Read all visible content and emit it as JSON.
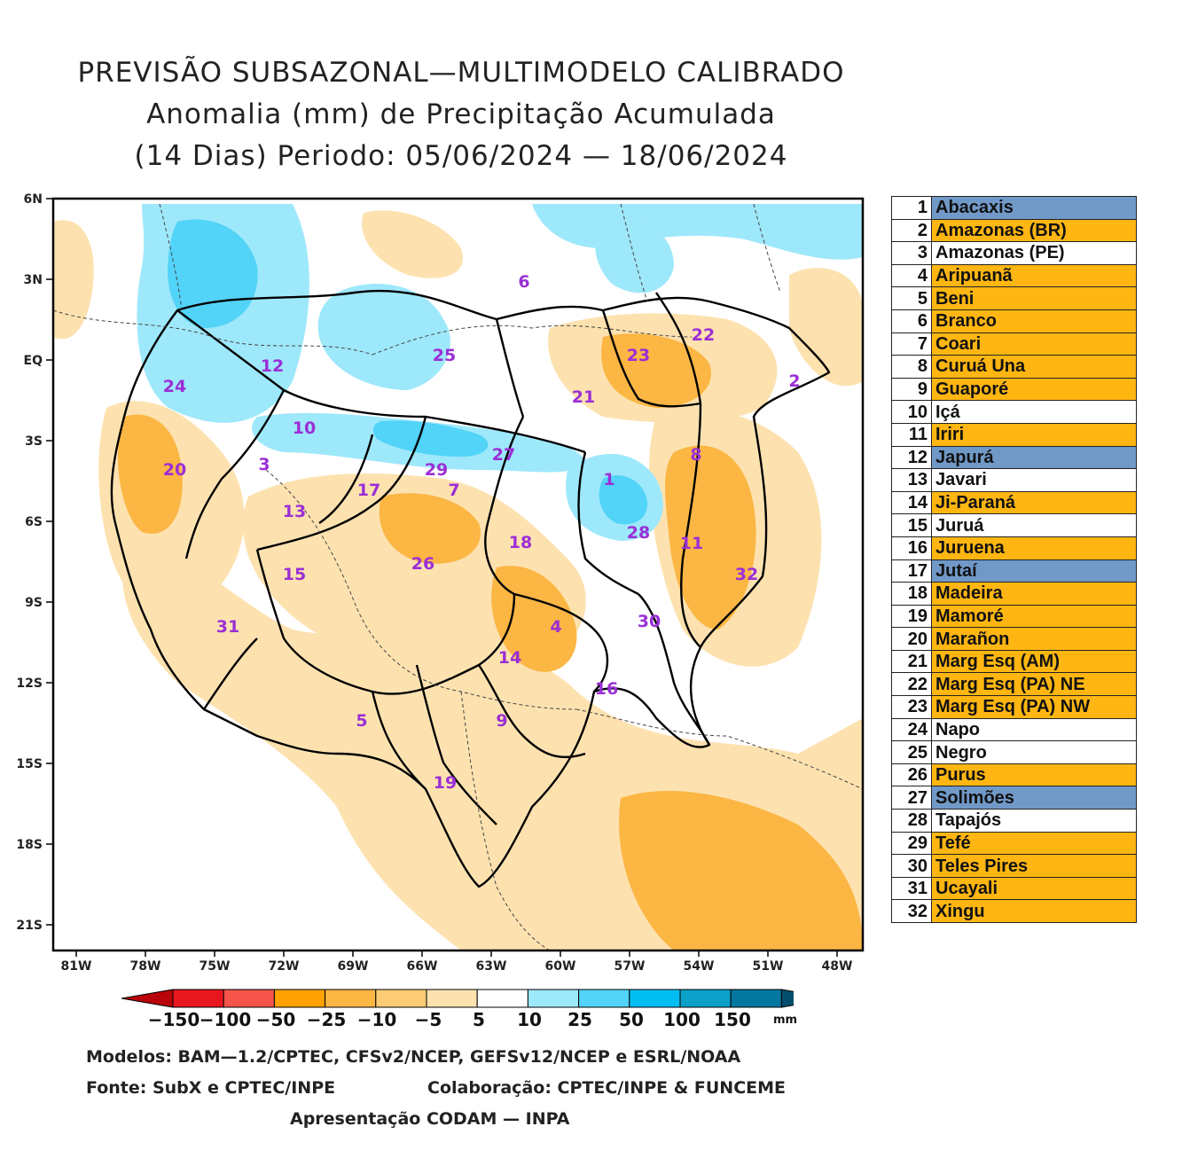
{
  "title": {
    "line1": "PREVISÃO SUBSAZONAL—MULTIMODELO CALIBRADO",
    "line2": "Anomalia (mm) de Precipitação Acumulada",
    "line3": "(14 Dias) Periodo: 05/06/2024 — 18/06/2024"
  },
  "map": {
    "lat_labels": [
      "6N",
      "3N",
      "EQ",
      "3S",
      "6S",
      "9S",
      "12S",
      "15S",
      "18S",
      "21S"
    ],
    "lon_labels": [
      "81W",
      "78W",
      "75W",
      "72W",
      "69W",
      "66W",
      "63W",
      "60W",
      "57W",
      "54W",
      "51W",
      "48W"
    ],
    "basin_numbers": [
      "1",
      "2",
      "3",
      "4",
      "5",
      "6",
      "7",
      "8",
      "9",
      "10",
      "11",
      "12",
      "13",
      "14",
      "15",
      "16",
      "17",
      "18",
      "19",
      "20",
      "21",
      "22",
      "23",
      "24",
      "25",
      "26",
      "27",
      "28",
      "29",
      "30",
      "31",
      "32"
    ]
  },
  "legend": {
    "colors": {
      "blue": "#7199c8",
      "orange": "#ffb612",
      "white": "#ffffff"
    },
    "items": [
      {
        "num": "1",
        "name": "Abacaxis",
        "status": "blue"
      },
      {
        "num": "2",
        "name": "Amazonas (BR)",
        "status": "orange"
      },
      {
        "num": "3",
        "name": "Amazonas (PE)",
        "status": "white"
      },
      {
        "num": "4",
        "name": "Aripuanã",
        "status": "orange"
      },
      {
        "num": "5",
        "name": "Beni",
        "status": "orange"
      },
      {
        "num": "6",
        "name": "Branco",
        "status": "orange"
      },
      {
        "num": "7",
        "name": "Coari",
        "status": "orange"
      },
      {
        "num": "8",
        "name": "Curuá Una",
        "status": "orange"
      },
      {
        "num": "9",
        "name": "Guaporé",
        "status": "orange"
      },
      {
        "num": "10",
        "name": "Içá",
        "status": "white"
      },
      {
        "num": "11",
        "name": "Iriri",
        "status": "orange"
      },
      {
        "num": "12",
        "name": "Japurá",
        "status": "blue"
      },
      {
        "num": "13",
        "name": "Javari",
        "status": "white"
      },
      {
        "num": "14",
        "name": "Ji-Paraná",
        "status": "orange"
      },
      {
        "num": "15",
        "name": "Juruá",
        "status": "white"
      },
      {
        "num": "16",
        "name": "Juruena",
        "status": "orange"
      },
      {
        "num": "17",
        "name": "Jutaí",
        "status": "blue"
      },
      {
        "num": "18",
        "name": "Madeira",
        "status": "orange"
      },
      {
        "num": "19",
        "name": "Mamoré",
        "status": "orange"
      },
      {
        "num": "20",
        "name": "Marañon",
        "status": "orange"
      },
      {
        "num": "21",
        "name": "Marg Esq (AM)",
        "status": "orange"
      },
      {
        "num": "22",
        "name": "Marg Esq (PA) NE",
        "status": "orange"
      },
      {
        "num": "23",
        "name": "Marg Esq (PA) NW",
        "status": "orange"
      },
      {
        "num": "24",
        "name": "Napo",
        "status": "white"
      },
      {
        "num": "25",
        "name": "Negro",
        "status": "white"
      },
      {
        "num": "26",
        "name": "Purus",
        "status": "orange"
      },
      {
        "num": "27",
        "name": "Solimões",
        "status": "blue"
      },
      {
        "num": "28",
        "name": "Tapajós",
        "status": "white"
      },
      {
        "num": "29",
        "name": "Tefé",
        "status": "orange"
      },
      {
        "num": "30",
        "name": "Teles Pires",
        "status": "orange"
      },
      {
        "num": "31",
        "name": "Ucayali",
        "status": "orange"
      },
      {
        "num": "32",
        "name": "Xingu",
        "status": "orange"
      }
    ]
  },
  "colorbar": {
    "labels": [
      "−150",
      "−100",
      "−50",
      "−25",
      "−10",
      "−5",
      "5",
      "10",
      "25",
      "50",
      "100",
      "150"
    ],
    "colors": [
      "#b8040a",
      "#e8171f",
      "#f5544a",
      "#ffa100",
      "#fbb644",
      "#fccb74",
      "#fde2b0",
      "#ffffff",
      "#9ee8fb",
      "#52d3f8",
      "#00bef2",
      "#0aa0c8",
      "#0477a0",
      "#044e6c"
    ],
    "unit": "mm"
  },
  "credits": {
    "models": "Modelos: BAM—1.2/CPTEC, CFSv2/NCEP, GEFSv12/NCEP e ESRL/NOAA",
    "source": "Fonte: SubX e CPTEC/INPE",
    "collab": "Colaboração: CPTEC/INPE & FUNCEME",
    "presentation": "Apresentação CODAM — INPA"
  }
}
